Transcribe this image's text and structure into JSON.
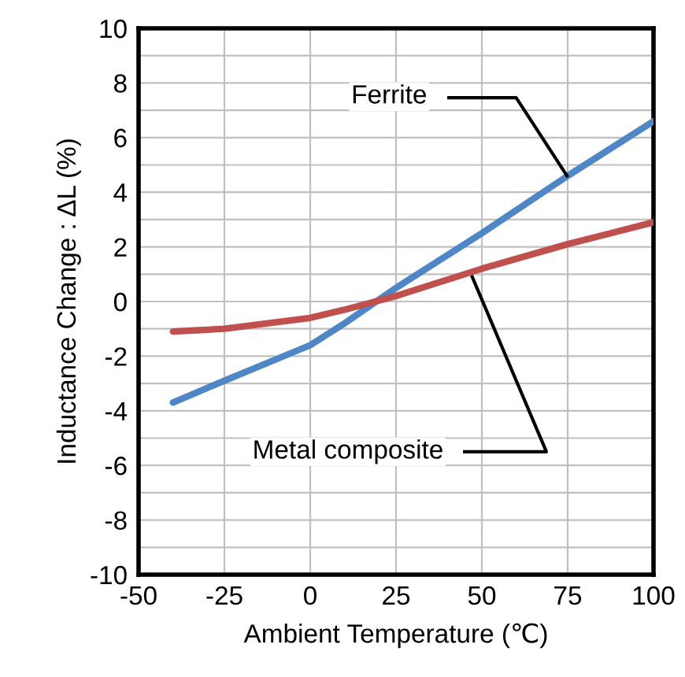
{
  "chart_data": {
    "type": "line",
    "xlabel": "Ambient Temperature (℃)",
    "ylabel": "Inductance Change : ΔL (%)",
    "x": [
      -40,
      -25,
      0,
      10,
      25,
      50,
      75,
      100
    ],
    "xlim": [
      -50,
      100
    ],
    "xticks": [
      -50,
      -25,
      0,
      25,
      50,
      75,
      100
    ],
    "ylim": [
      -10,
      10
    ],
    "yticks": [
      -10,
      {
        "value": -9,
        "label": null
      },
      -8,
      {
        "value": -7,
        "label": null
      },
      -6,
      {
        "value": -5,
        "label": null
      },
      -4,
      {
        "value": -3,
        "label": null
      },
      -2,
      {
        "value": -1,
        "label": null
      },
      0,
      {
        "value": 1,
        "label": null
      },
      2,
      {
        "value": 3,
        "label": null
      },
      4,
      {
        "value": 5,
        "label": null
      },
      6,
      {
        "value": 7,
        "label": null
      },
      8,
      {
        "value": 9,
        "label": null
      },
      10
    ],
    "grid": true,
    "legend": false,
    "marker": "none",
    "line_style": "solid",
    "series": [
      {
        "name": "Ferrite",
        "color": "#4f86c6",
        "values": [
          -3.7,
          -2.9,
          -1.6,
          -0.8,
          0.5,
          2.5,
          4.6,
          6.6
        ]
      },
      {
        "name": "Metal composite",
        "color": "#c0504d",
        "values": [
          -1.1,
          -1.0,
          -0.6,
          -0.3,
          0.2,
          1.2,
          2.1,
          2.9
        ]
      }
    ]
  }
}
